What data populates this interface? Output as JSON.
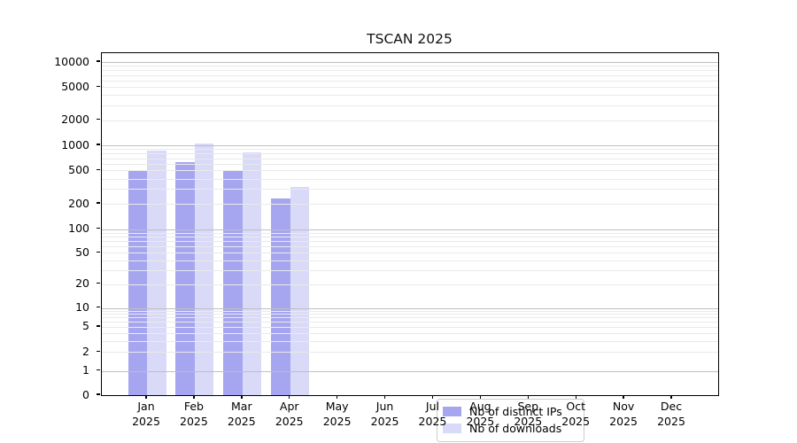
{
  "title": "TSCAN 2025",
  "chart_data": {
    "type": "bar",
    "title": "TSCAN 2025",
    "categories": [
      "Jan 2025",
      "Feb 2025",
      "Mar 2025",
      "Apr 2025",
      "May 2025",
      "Jun 2025",
      "Jul 2025",
      "Aug 2025",
      "Sep 2025",
      "Oct 2025",
      "Nov 2025",
      "Dec 2025"
    ],
    "series": [
      {
        "name": "Nb of distinct IPs",
        "color": "#a6a6f0",
        "values": [
          500,
          630,
          510,
          230,
          null,
          null,
          null,
          null,
          null,
          null,
          null,
          null
        ]
      },
      {
        "name": "Nb of downloads",
        "color": "#d9d9f8",
        "values": [
          870,
          1050,
          830,
          320,
          null,
          null,
          null,
          null,
          null,
          null,
          null,
          null
        ]
      }
    ],
    "yscale": "log-with-zero-baseline",
    "yticks": [
      10000,
      5000,
      2000,
      1000,
      500,
      200,
      100,
      50,
      20,
      10,
      5,
      2,
      1,
      0
    ],
    "ylim": [
      0,
      13000
    ],
    "xlabel": "",
    "ylabel": "",
    "grid": "horizontal major and log-minor lines drawn above bars",
    "legend_position": "inside bottom-center-left"
  },
  "colors": {
    "bar_distinct_ips": "#a6a6f0",
    "bar_downloads": "#d9d9f8",
    "grid_major": "#bfbfbf",
    "grid_minor": "#eaeaea",
    "spine": "#000000",
    "legend_border": "#cccccc",
    "background": "#ffffff",
    "text": "#000000"
  }
}
